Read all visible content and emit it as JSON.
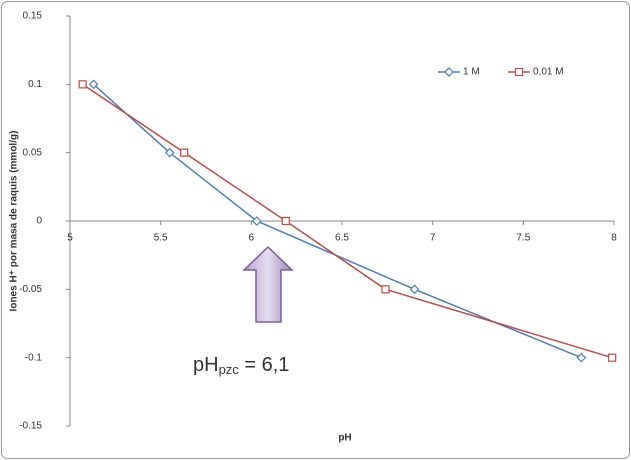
{
  "chart_data": {
    "type": "scatter-line",
    "xlabel": "pH",
    "ylabel": "Iones H⁺ por masa de raquis (mmol/g)",
    "xlim": [
      5,
      8
    ],
    "xticks": [
      5,
      5.5,
      6,
      6.5,
      7,
      7.5,
      8
    ],
    "ylim": [
      -0.15,
      0.15
    ],
    "yticks": [
      -0.15,
      -0.1,
      -0.05,
      0,
      0.05,
      0.1,
      0.15
    ],
    "grid": false,
    "legend": "top-right",
    "annotation": {
      "main": "pH",
      "sub": "pzc",
      "rest": " = 6,1"
    },
    "series": [
      {
        "name": "1 M",
        "color": "#4a7ebb",
        "marker": "diamond",
        "x": [
          5.13,
          5.55,
          6.03,
          6.9,
          7.82
        ],
        "values": [
          0.1,
          0.05,
          0,
          -0.05,
          -0.1
        ]
      },
      {
        "name": "0,01 M",
        "color": "#be4b48",
        "marker": "square",
        "x": [
          5.07,
          5.63,
          6.19,
          6.74,
          7.99
        ],
        "values": [
          0.1,
          0.05,
          0,
          -0.05,
          -0.1
        ]
      }
    ]
  }
}
